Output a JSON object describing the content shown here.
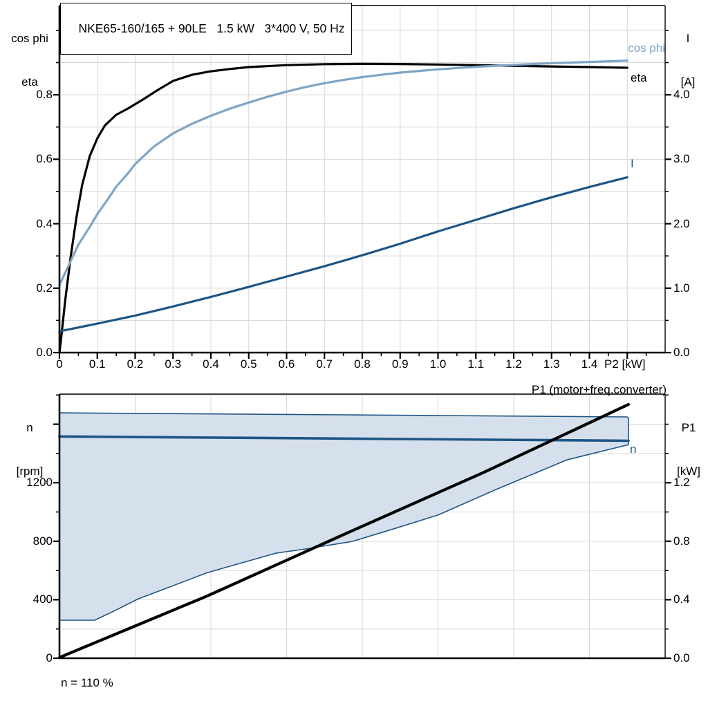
{
  "header": {
    "title": "NKE65-160/165 + 90LE   1.5 kW   3*400 V, 50 Hz"
  },
  "colors": {
    "black": "#000000",
    "dark_blue": "#1d5585",
    "light_blue": "#7ea4c4",
    "area_fill": "#d6e0ec",
    "grid": "#d7d7d7",
    "frame": "#000000"
  },
  "chart_data": [
    {
      "type": "line",
      "title": "NKE65-160/165 + 90LE   1.5 kW   3*400 V, 50 Hz",
      "x_axis": {
        "label": "P2 [kW]",
        "range": [
          0,
          1.6
        ],
        "ticks": [
          0,
          0.1,
          0.2,
          0.3,
          0.4,
          0.5,
          0.6,
          0.7,
          0.8,
          0.9,
          1.0,
          1.1,
          1.2,
          1.3,
          1.4
        ],
        "tick_labels": [
          "0",
          "0.1",
          "0.2",
          "0.3",
          "0.4",
          "0.5",
          "0.6",
          "0.7",
          "0.8",
          "0.9",
          "1.0",
          "1.1",
          "1.2",
          "1.3",
          "1.4"
        ],
        "extra_major_ticks": [
          1.5
        ],
        "minor_tick_step": 0.05,
        "grid_step": 0.1
      },
      "y_axis_left": {
        "label_lines": [
          "cos phi",
          "eta"
        ],
        "range": [
          0,
          1.077
        ],
        "ticks": [
          0,
          0.2,
          0.4,
          0.6,
          0.8
        ],
        "tick_labels": [
          "0.0",
          "0.2",
          "0.4",
          "0.6",
          "0.8"
        ],
        "extra_major_ticks": [],
        "minor_tick_step": 0.1,
        "grid_step": 0.1
      },
      "y_axis_right": {
        "label_lines": [
          "I",
          "[A]"
        ],
        "range": [
          0,
          5.385
        ],
        "ticks": [
          0,
          1.0,
          2.0,
          3.0,
          4.0
        ],
        "tick_labels": [
          "0.0",
          "1.0",
          "2.0",
          "3.0",
          "4.0"
        ],
        "extra_major_ticks": [],
        "minor_tick_step": 0.5
      },
      "grid": true,
      "legend_position": "end-of-curve",
      "series": [
        {
          "name": "eta",
          "label": "eta",
          "axis": "left",
          "color": "#000000",
          "width": 3.2,
          "points": [
            [
              0,
              0
            ],
            [
              0.005,
              0.05
            ],
            [
              0.015,
              0.16
            ],
            [
              0.03,
              0.3
            ],
            [
              0.045,
              0.42
            ],
            [
              0.06,
              0.52
            ],
            [
              0.08,
              0.61
            ],
            [
              0.1,
              0.665
            ],
            [
              0.12,
              0.705
            ],
            [
              0.15,
              0.738
            ],
            [
              0.18,
              0.757
            ],
            [
              0.22,
              0.785
            ],
            [
              0.26,
              0.815
            ],
            [
              0.3,
              0.843
            ],
            [
              0.35,
              0.862
            ],
            [
              0.4,
              0.873
            ],
            [
              0.45,
              0.88
            ],
            [
              0.5,
              0.886
            ],
            [
              0.6,
              0.892
            ],
            [
              0.7,
              0.895
            ],
            [
              0.8,
              0.896
            ],
            [
              0.9,
              0.8955
            ],
            [
              1.0,
              0.894
            ],
            [
              1.1,
              0.892
            ],
            [
              1.2,
              0.89
            ],
            [
              1.3,
              0.888
            ],
            [
              1.4,
              0.886
            ],
            [
              1.5,
              0.884
            ]
          ]
        },
        {
          "name": "cos phi",
          "label": "cos phi",
          "axis": "left",
          "color": "#7ea4c4",
          "width": 3.2,
          "points": [
            [
              0,
              0.21
            ],
            [
              0.02,
              0.26
            ],
            [
              0.05,
              0.335
            ],
            [
              0.08,
              0.39
            ],
            [
              0.1,
              0.43
            ],
            [
              0.13,
              0.48
            ],
            [
              0.15,
              0.515
            ],
            [
              0.18,
              0.555
            ],
            [
              0.2,
              0.585
            ],
            [
              0.25,
              0.64
            ],
            [
              0.3,
              0.68
            ],
            [
              0.35,
              0.71
            ],
            [
              0.4,
              0.735
            ],
            [
              0.45,
              0.757
            ],
            [
              0.5,
              0.776
            ],
            [
              0.55,
              0.794
            ],
            [
              0.6,
              0.81
            ],
            [
              0.65,
              0.824
            ],
            [
              0.7,
              0.836
            ],
            [
              0.75,
              0.846
            ],
            [
              0.8,
              0.855
            ],
            [
              0.85,
              0.862
            ],
            [
              0.9,
              0.869
            ],
            [
              0.95,
              0.874
            ],
            [
              1.0,
              0.879
            ],
            [
              1.1,
              0.887
            ],
            [
              1.2,
              0.893
            ],
            [
              1.3,
              0.898
            ],
            [
              1.4,
              0.902
            ],
            [
              1.5,
              0.906
            ]
          ]
        },
        {
          "name": "I",
          "label": "I",
          "axis": "right",
          "color": "#1d5585",
          "width": 3.2,
          "points": [
            [
              0,
              0.33
            ],
            [
              0.1,
              0.45
            ],
            [
              0.2,
              0.575
            ],
            [
              0.3,
              0.715
            ],
            [
              0.4,
              0.865
            ],
            [
              0.5,
              1.02
            ],
            [
              0.6,
              1.18
            ],
            [
              0.7,
              1.34
            ],
            [
              0.8,
              1.51
            ],
            [
              0.9,
              1.69
            ],
            [
              1.0,
              1.88
            ],
            [
              1.1,
              2.06
            ],
            [
              1.2,
              2.24
            ],
            [
              1.3,
              2.41
            ],
            [
              1.4,
              2.57
            ],
            [
              1.5,
              2.72
            ]
          ]
        }
      ]
    },
    {
      "type": "line+area",
      "x_axis": {
        "label": "",
        "range": [
          0,
          1.6
        ],
        "ticks": [],
        "tick_labels": [],
        "extra_major_ticks": [],
        "minor_tick_step": 0,
        "grid_step": 0.2
      },
      "y_axis_left": {
        "label_lines": [
          "n",
          "[rpm]"
        ],
        "range": [
          0,
          1806
        ],
        "ticks": [
          0,
          400,
          800,
          1200
        ],
        "tick_labels": [
          "0",
          "400",
          "800",
          "1200"
        ],
        "extra_major_ticks": [
          1600
        ],
        "minor_tick_step": 200,
        "grid_step": 200
      },
      "y_axis_right": {
        "label_lines": [
          "P1",
          "[kW]"
        ],
        "range": [
          0,
          1.806
        ],
        "ticks": [
          0,
          0.4,
          0.8,
          1.2
        ],
        "tick_labels": [
          "0.0",
          "0.4",
          "0.8",
          "1.2"
        ],
        "extra_major_ticks": [],
        "minor_tick_step": 0.2
      },
      "grid": true,
      "footnote": "n = 110 %",
      "area": {
        "name": "speed-operating-envelope",
        "axis": "left",
        "fill": "#d6e0ec",
        "stroke": "#1d5585",
        "stroke_width": 1.6,
        "points": [
          [
            0,
            1678
          ],
          [
            0.75,
            1664
          ],
          [
            1.5,
            1650
          ],
          [
            1.503,
            1640
          ],
          [
            1.503,
            1460
          ],
          [
            1.34,
            1356
          ],
          [
            1.15,
            1150
          ],
          [
            1.0,
            979
          ],
          [
            0.89,
            890
          ],
          [
            0.774,
            799
          ],
          [
            0.65,
            747
          ],
          [
            0.573,
            719
          ],
          [
            0.391,
            586
          ],
          [
            0.282,
            478
          ],
          [
            0.208,
            406
          ],
          [
            0.15,
            330
          ],
          [
            0.093,
            260
          ],
          [
            0,
            260
          ]
        ]
      },
      "series": [
        {
          "name": "n",
          "label": "n",
          "axis": "left",
          "color": "#1d5585",
          "width": 3.6,
          "points": [
            [
              0,
              1516
            ],
            [
              0.75,
              1502
            ],
            [
              1.503,
              1487
            ]
          ]
        },
        {
          "name": "P1 (motor+freq.converter)",
          "label": "P1 (motor+freq.converter)",
          "axis": "right",
          "color": "#000000",
          "width": 4.2,
          "points": [
            [
              0,
              0.005
            ],
            [
              0.39,
              0.425
            ],
            [
              0.75,
              0.845
            ],
            [
              1.12,
              1.27
            ],
            [
              1.503,
              1.735
            ]
          ]
        }
      ]
    }
  ]
}
